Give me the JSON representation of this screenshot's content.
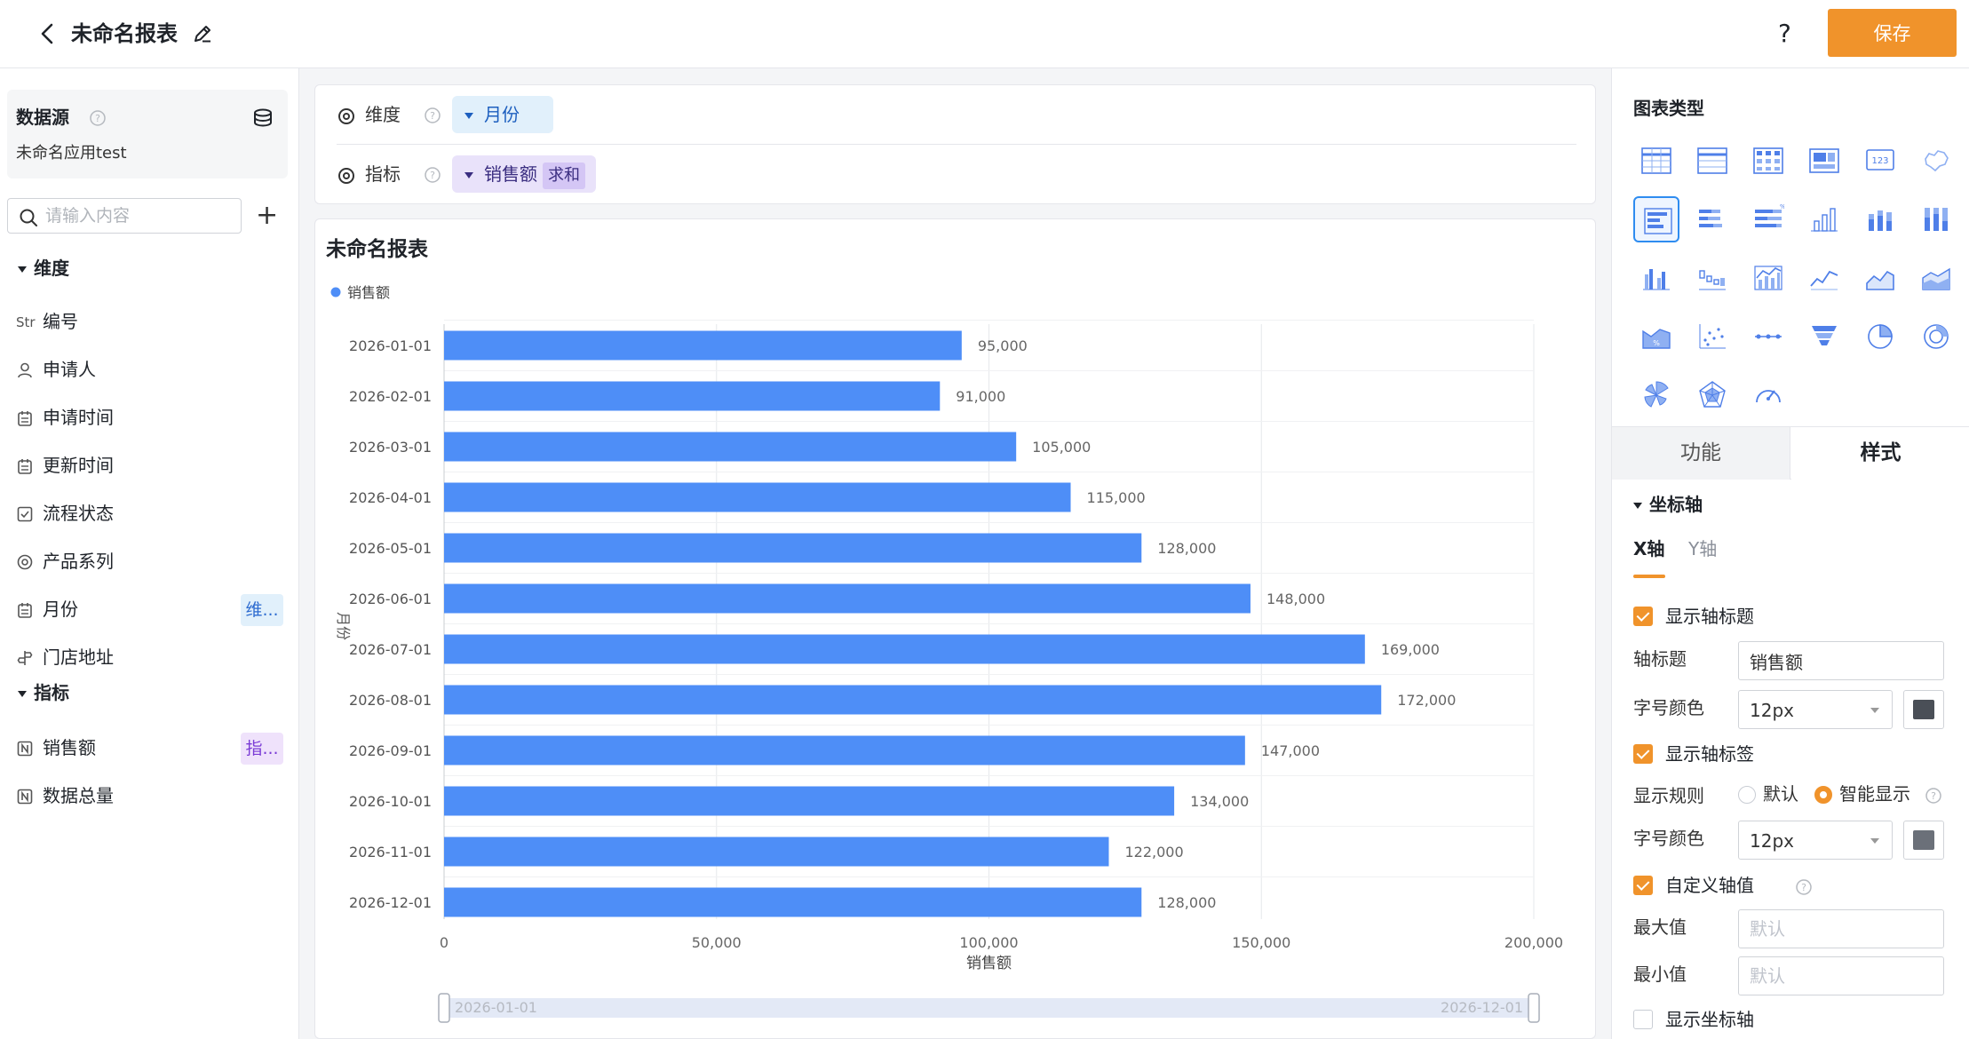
{
  "header": {
    "title": "未命名报表",
    "help": "?",
    "save_label": "保存"
  },
  "left": {
    "datasource_title": "数据源",
    "datasource_name": "未命名应用test",
    "search_placeholder": "请输入内容",
    "add_label": "+",
    "dimension_group": "维度",
    "metric_group": "指标",
    "dimensions": [
      {
        "label": "编号",
        "icon": "string-type-icon",
        "icon_text": "Str"
      },
      {
        "label": "申请人",
        "icon": "user-icon"
      },
      {
        "label": "申请时间",
        "icon": "calendar-icon"
      },
      {
        "label": "更新时间",
        "icon": "calendar-icon"
      },
      {
        "label": "流程状态",
        "icon": "checkbox-icon"
      },
      {
        "label": "产品系列",
        "icon": "radio-icon"
      },
      {
        "label": "月份",
        "icon": "calendar-icon",
        "tag": "维..."
      },
      {
        "label": "门店地址",
        "icon": "location-icon"
      }
    ],
    "metrics": [
      {
        "label": "销售额",
        "icon": "number-icon",
        "tag": "指..."
      },
      {
        "label": "数据总量",
        "icon": "number-icon"
      }
    ]
  },
  "config": {
    "dimension_label": "维度",
    "dimension_value": "月份",
    "metric_label": "指标",
    "metric_value": "销售额",
    "metric_agg": "求和"
  },
  "chart": {
    "title": "未命名报表",
    "slider_start": "2026-01-01",
    "slider_end": "2026-12-01"
  },
  "chart_data": {
    "type": "bar",
    "orientation": "horizontal",
    "categories": [
      "2026-01-01",
      "2026-02-01",
      "2026-03-01",
      "2026-04-01",
      "2026-05-01",
      "2026-06-01",
      "2026-07-01",
      "2026-08-01",
      "2026-09-01",
      "2026-10-01",
      "2026-11-01",
      "2026-12-01"
    ],
    "series": [
      {
        "name": "销售额",
        "values": [
          95000,
          91000,
          105000,
          115000,
          128000,
          148000,
          169000,
          172000,
          147000,
          134000,
          122000,
          128000
        ]
      }
    ],
    "data_labels": [
      "95,000",
      "91,000",
      "105,000",
      "115,000",
      "128,000",
      "148,000",
      "169,000",
      "172,000",
      "147,000",
      "134,000",
      "122,000",
      "128,000"
    ],
    "xlabel": "销售额",
    "ylabel": "月份",
    "xlim": [
      0,
      200000
    ],
    "x_ticks": [
      "0",
      "50,000",
      "100,000",
      "150,000",
      "200,000"
    ],
    "legend": "top-left",
    "grid": true,
    "bar_color": "#4e8ef7"
  },
  "right": {
    "chart_type_title": "图表类型",
    "tabs": {
      "function": "功能",
      "style": "样式"
    },
    "axis_section": "坐标轴",
    "axis_tabs": {
      "x": "X轴",
      "y": "Y轴"
    },
    "show_axis_title": "显示轴标题",
    "axis_title_label": "轴标题",
    "axis_title_value": "销售额",
    "font_color_label": "字号颜色",
    "font_size_1": "12px",
    "color_1": "#4a4f57",
    "show_axis_label": "显示轴标签",
    "display_rule_label": "显示规则",
    "rule_default": "默认",
    "rule_smart": "智能显示",
    "font_size_2": "12px",
    "color_2": "#6b7079",
    "custom_axis_value": "自定义轴值",
    "max_label": "最大值",
    "max_placeholder": "默认",
    "min_label": "最小值",
    "min_placeholder": "默认",
    "show_axis_line": "显示坐标轴",
    "accent": "#f0932b"
  }
}
